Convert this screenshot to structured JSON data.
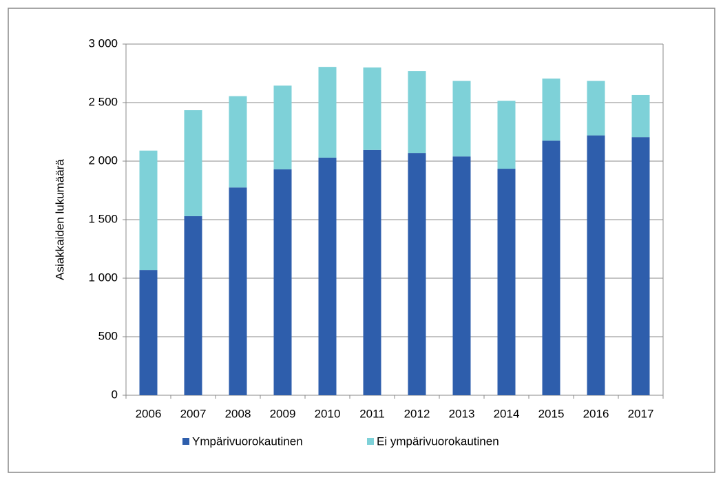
{
  "chart_data": {
    "type": "stacked-bar",
    "y_label": "Asiakkaiden lukumäärä",
    "categories": [
      "2006",
      "2007",
      "2008",
      "2009",
      "2010",
      "2011",
      "2012",
      "2013",
      "2014",
      "2015",
      "2016",
      "2017"
    ],
    "series": [
      {
        "name": "Ympärivuorokautinen",
        "color": "#2e5eac",
        "values": [
          1070,
          1530,
          1775,
          1930,
          2030,
          2095,
          2070,
          2040,
          1935,
          2175,
          2220,
          2205
        ]
      },
      {
        "name": "Ei ympärivuorokautinen",
        "color": "#7ed1d8",
        "values": [
          1020,
          905,
          780,
          715,
          775,
          705,
          700,
          645,
          580,
          530,
          465,
          360
        ]
      }
    ],
    "ylim": [
      0,
      3000
    ],
    "yticks": [
      0,
      500,
      {
        "value": 1000,
        "label": "1 000"
      },
      {
        "value": 1500,
        "label": "1 500"
      },
      {
        "value": 2000,
        "label": "2 000"
      },
      {
        "value": 2500,
        "label": "2 500"
      },
      {
        "value": 3000,
        "label": "3 000"
      }
    ],
    "grid": true,
    "legend": "bottom"
  }
}
